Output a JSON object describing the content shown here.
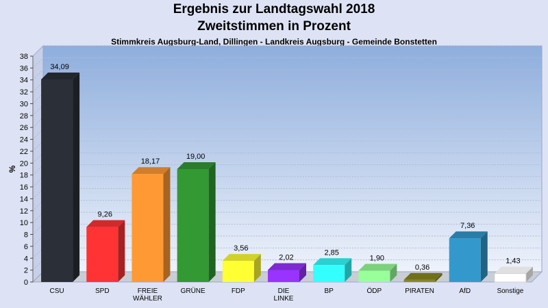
{
  "header": {
    "title": "Ergebnis zur Landtagswahl 2018",
    "subtitle": "Zweitstimmen in Prozent",
    "location": "Stimmkreis Augsburg-Land, Dillingen - Landkreis Augsburg - Gemeinde Bonstetten"
  },
  "chart_data": {
    "type": "bar",
    "title": "Ergebnis zur Landtagswahl 2018",
    "subtitle": "Zweitstimmen in Prozent",
    "ylabel": "%",
    "ylim": [
      0,
      38
    ],
    "ytick_step": 2,
    "grid": true,
    "categories": [
      {
        "lines": [
          "CSU"
        ],
        "value": 34.09,
        "label": "34,09",
        "color": "#2a2f38"
      },
      {
        "lines": [
          "SPD"
        ],
        "value": 9.26,
        "label": "9,26",
        "color": "#ff3333"
      },
      {
        "lines": [
          "FREIE",
          "WÄHLER"
        ],
        "value": 18.17,
        "label": "18,17",
        "color": "#ff9933"
      },
      {
        "lines": [
          "GRÜNE"
        ],
        "value": 19.0,
        "label": "19,00",
        "color": "#339933"
      },
      {
        "lines": [
          "FDP"
        ],
        "value": 3.56,
        "label": "3,56",
        "color": "#ffff33"
      },
      {
        "lines": [
          "DIE",
          "LINKE"
        ],
        "value": 2.02,
        "label": "2,02",
        "color": "#9933ff"
      },
      {
        "lines": [
          "BP"
        ],
        "value": 2.85,
        "label": "2,85",
        "color": "#33ffff"
      },
      {
        "lines": [
          "ÖDP"
        ],
        "value": 1.9,
        "label": "1,90",
        "color": "#99ff99"
      },
      {
        "lines": [
          "PIRATEN"
        ],
        "value": 0.36,
        "label": "0,36",
        "color": "#888822"
      },
      {
        "lines": [
          "AfD"
        ],
        "value": 7.36,
        "label": "7,36",
        "color": "#3399cc"
      },
      {
        "lines": [
          "Sonstige"
        ],
        "value": 1.43,
        "label": "1,43",
        "color": "#ffffff"
      }
    ]
  }
}
